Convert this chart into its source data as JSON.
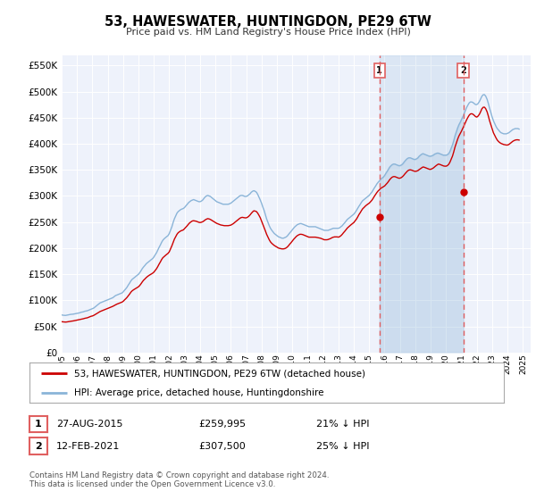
{
  "title": "53, HAWESWATER, HUNTINGDON, PE29 6TW",
  "subtitle": "Price paid vs. HM Land Registry's House Price Index (HPI)",
  "background_color": "#ffffff",
  "plot_bg_color": "#eef2fb",
  "grid_color": "#ffffff",
  "ylim": [
    0,
    570000
  ],
  "yticks": [
    0,
    50000,
    100000,
    150000,
    200000,
    250000,
    300000,
    350000,
    400000,
    450000,
    500000,
    550000
  ],
  "sale1_date": "27-AUG-2015",
  "sale1_price": 259995,
  "sale1_pct": "21%",
  "sale2_date": "12-FEB-2021",
  "sale2_price": 307500,
  "sale2_pct": "25%",
  "legend_line1": "53, HAWESWATER, HUNTINGDON, PE29 6TW (detached house)",
  "legend_line2": "HPI: Average price, detached house, Huntingdonshire",
  "footer": "Contains HM Land Registry data © Crown copyright and database right 2024.\nThis data is licensed under the Open Government Licence v3.0.",
  "red_color": "#cc0000",
  "blue_color": "#8ab4d8",
  "fill_color": "#d6e8f7",
  "dashed_color": "#e06060",
  "sale1_x": 2015.67,
  "sale2_x": 2021.12,
  "hpi_dates": [
    1995.0,
    1995.08,
    1995.17,
    1995.25,
    1995.33,
    1995.42,
    1995.5,
    1995.58,
    1995.67,
    1995.75,
    1995.83,
    1995.92,
    1996.0,
    1996.08,
    1996.17,
    1996.25,
    1996.33,
    1996.42,
    1996.5,
    1996.58,
    1996.67,
    1996.75,
    1996.83,
    1996.92,
    1997.0,
    1997.08,
    1997.17,
    1997.25,
    1997.33,
    1997.42,
    1997.5,
    1997.58,
    1997.67,
    1997.75,
    1997.83,
    1997.92,
    1998.0,
    1998.08,
    1998.17,
    1998.25,
    1998.33,
    1998.42,
    1998.5,
    1998.58,
    1998.67,
    1998.75,
    1998.83,
    1998.92,
    1999.0,
    1999.08,
    1999.17,
    1999.25,
    1999.33,
    1999.42,
    1999.5,
    1999.58,
    1999.67,
    1999.75,
    1999.83,
    1999.92,
    2000.0,
    2000.08,
    2000.17,
    2000.25,
    2000.33,
    2000.42,
    2000.5,
    2000.58,
    2000.67,
    2000.75,
    2000.83,
    2000.92,
    2001.0,
    2001.08,
    2001.17,
    2001.25,
    2001.33,
    2001.42,
    2001.5,
    2001.58,
    2001.67,
    2001.75,
    2001.83,
    2001.92,
    2002.0,
    2002.08,
    2002.17,
    2002.25,
    2002.33,
    2002.42,
    2002.5,
    2002.58,
    2002.67,
    2002.75,
    2002.83,
    2002.92,
    2003.0,
    2003.08,
    2003.17,
    2003.25,
    2003.33,
    2003.42,
    2003.5,
    2003.58,
    2003.67,
    2003.75,
    2003.83,
    2003.92,
    2004.0,
    2004.08,
    2004.17,
    2004.25,
    2004.33,
    2004.42,
    2004.5,
    2004.58,
    2004.67,
    2004.75,
    2004.83,
    2004.92,
    2005.0,
    2005.08,
    2005.17,
    2005.25,
    2005.33,
    2005.42,
    2005.5,
    2005.58,
    2005.67,
    2005.75,
    2005.83,
    2005.92,
    2006.0,
    2006.08,
    2006.17,
    2006.25,
    2006.33,
    2006.42,
    2006.5,
    2006.58,
    2006.67,
    2006.75,
    2006.83,
    2006.92,
    2007.0,
    2007.08,
    2007.17,
    2007.25,
    2007.33,
    2007.42,
    2007.5,
    2007.58,
    2007.67,
    2007.75,
    2007.83,
    2007.92,
    2008.0,
    2008.08,
    2008.17,
    2008.25,
    2008.33,
    2008.42,
    2008.5,
    2008.58,
    2008.67,
    2008.75,
    2008.83,
    2008.92,
    2009.0,
    2009.08,
    2009.17,
    2009.25,
    2009.33,
    2009.42,
    2009.5,
    2009.58,
    2009.67,
    2009.75,
    2009.83,
    2009.92,
    2010.0,
    2010.08,
    2010.17,
    2010.25,
    2010.33,
    2010.42,
    2010.5,
    2010.58,
    2010.67,
    2010.75,
    2010.83,
    2010.92,
    2011.0,
    2011.08,
    2011.17,
    2011.25,
    2011.33,
    2011.42,
    2011.5,
    2011.58,
    2011.67,
    2011.75,
    2011.83,
    2011.92,
    2012.0,
    2012.08,
    2012.17,
    2012.25,
    2012.33,
    2012.42,
    2012.5,
    2012.58,
    2012.67,
    2012.75,
    2012.83,
    2012.92,
    2013.0,
    2013.08,
    2013.17,
    2013.25,
    2013.33,
    2013.42,
    2013.5,
    2013.58,
    2013.67,
    2013.75,
    2013.83,
    2013.92,
    2014.0,
    2014.08,
    2014.17,
    2014.25,
    2014.33,
    2014.42,
    2014.5,
    2014.58,
    2014.67,
    2014.75,
    2014.83,
    2014.92,
    2015.0,
    2015.08,
    2015.17,
    2015.25,
    2015.33,
    2015.42,
    2015.5,
    2015.58,
    2015.67,
    2015.75,
    2015.83,
    2015.92,
    2016.0,
    2016.08,
    2016.17,
    2016.25,
    2016.33,
    2016.42,
    2016.5,
    2016.58,
    2016.67,
    2016.75,
    2016.83,
    2016.92,
    2017.0,
    2017.08,
    2017.17,
    2017.25,
    2017.33,
    2017.42,
    2017.5,
    2017.58,
    2017.67,
    2017.75,
    2017.83,
    2017.92,
    2018.0,
    2018.08,
    2018.17,
    2018.25,
    2018.33,
    2018.42,
    2018.5,
    2018.58,
    2018.67,
    2018.75,
    2018.83,
    2018.92,
    2019.0,
    2019.08,
    2019.17,
    2019.25,
    2019.33,
    2019.42,
    2019.5,
    2019.58,
    2019.67,
    2019.75,
    2019.83,
    2019.92,
    2020.0,
    2020.08,
    2020.17,
    2020.25,
    2020.33,
    2020.42,
    2020.5,
    2020.58,
    2020.67,
    2020.75,
    2020.83,
    2020.92,
    2021.0,
    2021.08,
    2021.17,
    2021.25,
    2021.33,
    2021.42,
    2021.5,
    2021.58,
    2021.67,
    2021.75,
    2021.83,
    2021.92,
    2022.0,
    2022.08,
    2022.17,
    2022.25,
    2022.33,
    2022.42,
    2022.5,
    2022.58,
    2022.67,
    2022.75,
    2022.83,
    2022.92,
    2023.0,
    2023.08,
    2023.17,
    2023.25,
    2023.33,
    2023.42,
    2023.5,
    2023.58,
    2023.67,
    2023.75,
    2023.83,
    2023.92,
    2024.0,
    2024.08,
    2024.17,
    2024.25,
    2024.33,
    2024.42,
    2024.5,
    2024.58,
    2024.67,
    2024.75
  ],
  "hpi_values": [
    72000,
    71500,
    71200,
    71000,
    71500,
    72000,
    72500,
    73000,
    73200,
    73500,
    74000,
    74500,
    75000,
    75500,
    76000,
    77000,
    77500,
    78000,
    79000,
    79500,
    80000,
    81000,
    82000,
    83000,
    84000,
    85000,
    87000,
    89000,
    91000,
    93000,
    95000,
    96000,
    97000,
    98000,
    99000,
    100000,
    101000,
    102000,
    103000,
    104000,
    105000,
    107000,
    109000,
    110000,
    111000,
    112000,
    113000,
    114000,
    116000,
    119000,
    122000,
    125000,
    129000,
    133000,
    137000,
    140000,
    142000,
    144000,
    146000,
    148000,
    150000,
    153000,
    157000,
    161000,
    164000,
    167000,
    170000,
    172000,
    174000,
    176000,
    178000,
    180000,
    183000,
    187000,
    191000,
    196000,
    201000,
    206000,
    211000,
    215000,
    218000,
    220000,
    222000,
    224000,
    228000,
    234000,
    241000,
    249000,
    256000,
    262000,
    267000,
    270000,
    272000,
    274000,
    275000,
    276000,
    278000,
    281000,
    284000,
    287000,
    289000,
    291000,
    292000,
    293000,
    292000,
    291000,
    290000,
    289000,
    289000,
    290000,
    292000,
    295000,
    298000,
    300000,
    301000,
    300000,
    299000,
    297000,
    295000,
    293000,
    291000,
    289000,
    288000,
    287000,
    286000,
    285000,
    284000,
    284000,
    284000,
    284000,
    284000,
    285000,
    286000,
    288000,
    290000,
    292000,
    294000,
    296000,
    298000,
    300000,
    301000,
    301000,
    300000,
    299000,
    299000,
    300000,
    302000,
    304000,
    307000,
    309000,
    310000,
    309000,
    307000,
    303000,
    298000,
    292000,
    286000,
    279000,
    272000,
    264000,
    256000,
    249000,
    243000,
    238000,
    234000,
    231000,
    228000,
    226000,
    224000,
    222000,
    221000,
    220000,
    219000,
    219000,
    220000,
    221000,
    223000,
    226000,
    229000,
    232000,
    235000,
    238000,
    241000,
    243000,
    245000,
    246000,
    247000,
    247000,
    246000,
    245000,
    244000,
    243000,
    242000,
    241000,
    241000,
    241000,
    241000,
    241000,
    241000,
    240000,
    239000,
    238000,
    237000,
    236000,
    235000,
    234000,
    234000,
    234000,
    234000,
    235000,
    236000,
    237000,
    238000,
    238000,
    238000,
    238000,
    238000,
    239000,
    241000,
    243000,
    246000,
    249000,
    252000,
    255000,
    257000,
    259000,
    261000,
    263000,
    265000,
    268000,
    272000,
    276000,
    280000,
    284000,
    288000,
    291000,
    293000,
    295000,
    297000,
    299000,
    301000,
    304000,
    307000,
    311000,
    315000,
    319000,
    323000,
    326000,
    329000,
    332000,
    334000,
    336000,
    339000,
    343000,
    347000,
    351000,
    355000,
    358000,
    360000,
    361000,
    361000,
    360000,
    359000,
    358000,
    358000,
    359000,
    361000,
    364000,
    367000,
    370000,
    372000,
    373000,
    373000,
    372000,
    371000,
    370000,
    370000,
    371000,
    373000,
    376000,
    378000,
    380000,
    381000,
    380000,
    379000,
    378000,
    377000,
    376000,
    376000,
    377000,
    378000,
    380000,
    381000,
    382000,
    382000,
    381000,
    380000,
    379000,
    378000,
    378000,
    378000,
    379000,
    381000,
    385000,
    391000,
    398000,
    406000,
    415000,
    423000,
    430000,
    436000,
    441000,
    446000,
    451000,
    457000,
    463000,
    469000,
    474000,
    478000,
    480000,
    480000,
    479000,
    477000,
    475000,
    475000,
    477000,
    481000,
    486000,
    491000,
    494000,
    494000,
    491000,
    485000,
    477000,
    468000,
    459000,
    451000,
    444000,
    438000,
    433000,
    429000,
    426000,
    423000,
    421000,
    420000,
    419000,
    419000,
    419000,
    420000,
    421000,
    423000,
    425000,
    427000,
    428000,
    429000,
    429000,
    429000,
    428000
  ],
  "red_values": [
    59000,
    58700,
    58500,
    58300,
    58500,
    59000,
    59500,
    60000,
    60200,
    60500,
    61000,
    61500,
    62000,
    62500,
    63000,
    63800,
    64200,
    64700,
    65500,
    66000,
    66500,
    67500,
    68500,
    69500,
    70000,
    71000,
    72500,
    74000,
    75500,
    77000,
    78500,
    79500,
    80500,
    81500,
    82500,
    83500,
    84500,
    85500,
    86500,
    87500,
    88500,
    90000,
    91500,
    92500,
    93500,
    94500,
    95500,
    96500,
    98000,
    100500,
    103000,
    105500,
    108500,
    112000,
    115500,
    118000,
    120000,
    121500,
    123000,
    124500,
    126000,
    128500,
    132000,
    135500,
    138500,
    141000,
    143500,
    145500,
    147500,
    149000,
    150500,
    152000,
    154000,
    157000,
    160500,
    164500,
    169000,
    173500,
    178000,
    181500,
    184000,
    186000,
    188000,
    190000,
    193000,
    198500,
    204500,
    211000,
    217000,
    222000,
    226500,
    229500,
    231500,
    233000,
    234000,
    235000,
    237500,
    240000,
    243000,
    246000,
    248500,
    250500,
    252000,
    252500,
    252000,
    251500,
    250500,
    249500,
    249000,
    249500,
    250500,
    252000,
    254000,
    255500,
    256500,
    256000,
    255000,
    253500,
    252000,
    250500,
    249000,
    247500,
    246500,
    245500,
    244500,
    244000,
    243500,
    243000,
    243000,
    243000,
    243000,
    243500,
    244000,
    245500,
    247000,
    249000,
    251000,
    253000,
    255000,
    257000,
    258500,
    259000,
    258500,
    258000,
    258000,
    259000,
    261000,
    263500,
    266500,
    269500,
    271500,
    271000,
    270000,
    267000,
    263000,
    258000,
    252000,
    246000,
    239500,
    233000,
    226500,
    221000,
    216000,
    212000,
    209000,
    207000,
    205000,
    203500,
    202000,
    200500,
    199500,
    199000,
    198500,
    198500,
    199000,
    200000,
    202000,
    204500,
    207500,
    210500,
    213500,
    216500,
    219500,
    222000,
    224000,
    225500,
    226500,
    226500,
    226000,
    225000,
    224000,
    223000,
    222000,
    221000,
    221000,
    221000,
    221000,
    221000,
    221000,
    220500,
    220000,
    219500,
    219000,
    218000,
    217000,
    216000,
    216000,
    216000,
    216500,
    217500,
    218500,
    220000,
    221000,
    221500,
    221500,
    221500,
    221000,
    222000,
    224000,
    226500,
    229500,
    232500,
    235500,
    238500,
    241000,
    243000,
    245000,
    247000,
    249000,
    252000,
    255500,
    259500,
    264000,
    268000,
    272000,
    275500,
    278000,
    280500,
    282500,
    284500,
    286000,
    288500,
    291500,
    295000,
    299000,
    303000,
    306500,
    309500,
    312000,
    314500,
    316000,
    317500,
    319000,
    321500,
    324500,
    327500,
    331000,
    334000,
    336000,
    337000,
    337000,
    336000,
    335000,
    334000,
    334000,
    335000,
    337000,
    339500,
    342500,
    345500,
    348000,
    349500,
    350000,
    349500,
    348500,
    347500,
    347000,
    347500,
    348500,
    350500,
    352000,
    354000,
    355500,
    355000,
    354000,
    353000,
    352000,
    351000,
    351000,
    352000,
    353500,
    355500,
    357500,
    359500,
    361000,
    360500,
    359500,
    358500,
    357500,
    357000,
    357000,
    358000,
    360500,
    364500,
    370000,
    376500,
    384500,
    393500,
    401500,
    408500,
    414500,
    419500,
    424000,
    429000,
    434500,
    440000,
    445500,
    450500,
    454500,
    457000,
    457500,
    456500,
    454500,
    452000,
    451000,
    453000,
    456500,
    461500,
    467000,
    470000,
    470000,
    467000,
    461000,
    453000,
    444000,
    435500,
    427500,
    421000,
    415500,
    411000,
    407000,
    404000,
    402000,
    400500,
    399500,
    398500,
    398000,
    397500,
    397500,
    398500,
    400500,
    402500,
    404500,
    406000,
    407000,
    407500,
    407500,
    407000
  ],
  "xtick_years": [
    1995,
    1996,
    1997,
    1998,
    1999,
    2000,
    2001,
    2002,
    2003,
    2004,
    2005,
    2006,
    2007,
    2008,
    2009,
    2010,
    2011,
    2012,
    2013,
    2014,
    2015,
    2016,
    2017,
    2018,
    2019,
    2020,
    2021,
    2022,
    2023,
    2024,
    2025
  ]
}
